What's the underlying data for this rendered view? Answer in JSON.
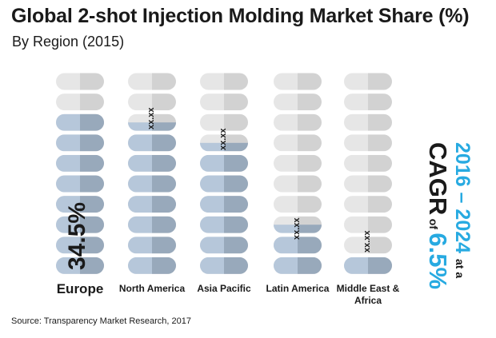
{
  "title": "Global 2-shot Injection Molding Market Share (%)",
  "subtitle": "By Region (2015)",
  "source": "Source: Transparency Market Research, 2017",
  "cagr": {
    "period": "2016 – 2024",
    "at_a": "at a",
    "label": "CAGR",
    "of": "of",
    "value": "6.5%"
  },
  "colors": {
    "inactive_left": "#e6e6e6",
    "inactive_right": "#d2d2d2",
    "active_left": "#b6c7da",
    "active_right": "#98a9bb",
    "accent": "#27aae1"
  },
  "chart_data": {
    "type": "bar",
    "style": "pictogram (stacked pills, 10 per column)",
    "categories": [
      "Europe",
      "North America",
      "Asia Pacific",
      "Latin America",
      "Middle East & Africa"
    ],
    "category_lines": [
      [
        "Europe"
      ],
      [
        "North America"
      ],
      [
        "Asia Pacific"
      ],
      [
        "Latin America"
      ],
      [
        "Middle East &",
        "Africa"
      ]
    ],
    "value_labels": [
      "34.5%",
      "xx.xx",
      "xx.xx",
      "xx.xx",
      "xx.xx"
    ],
    "units_per_column": 10,
    "filled_units": [
      8,
      7.5,
      6.5,
      2.5,
      1
    ]
  }
}
